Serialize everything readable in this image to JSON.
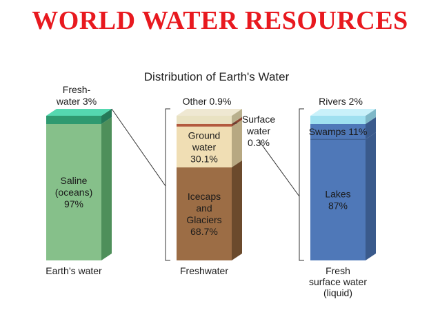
{
  "slide": {
    "title": "WORLD WATER RESOURCES"
  },
  "chart_data": {
    "type": "bar",
    "title": "Distribution of Earth's Water",
    "stacks": [
      {
        "name": "Earth’s water",
        "caption_lines": [
          "Earth’s water"
        ],
        "segments": [
          {
            "label_lines": [
              "Saline",
              "(oceans)",
              "97%"
            ],
            "value": 97,
            "color": "#86c08a",
            "side_color": "#4e8f5a",
            "label_position": "inside"
          },
          {
            "label_lines": [
              "Fresh-",
              "water 3%"
            ],
            "value": 3,
            "color": "#2f9a70",
            "side_color": "#257a58",
            "top_color": "#55d8b0",
            "label_position": "above"
          }
        ]
      },
      {
        "name": "Freshwater",
        "caption_lines": [
          "Freshwater"
        ],
        "segments": [
          {
            "label_lines": [
              "Icecaps",
              "and",
              "Glaciers",
              "68.7%"
            ],
            "value": 68.7,
            "color": "#9c6d45",
            "side_color": "#6b4a2c",
            "label_position": "inside"
          },
          {
            "label_lines": [
              "Ground",
              "water",
              "30.1%"
            ],
            "value": 30.1,
            "color": "#f0deb4",
            "side_color": "#b7a882",
            "label_position": "inside"
          },
          {
            "label_lines": [
              "Surface",
              "water",
              "0.3%"
            ],
            "value": 0.3,
            "color": "#b35a3e",
            "side_color": "#8a4530",
            "label_position": "right"
          },
          {
            "label_lines": [
              "Other 0.9%"
            ],
            "value": 0.9,
            "color": "#e9e2c2",
            "side_color": "#b9b08e",
            "top_color": "#efe8d2",
            "label_position": "above"
          }
        ]
      },
      {
        "name": "Fresh surface water (liquid)",
        "caption_lines": [
          "Fresh",
          "surface water",
          "(liquid)"
        ],
        "segments": [
          {
            "label_lines": [
              "Lakes",
              "87%"
            ],
            "value": 87,
            "color": "#4f78b8",
            "side_color": "#3a5a8c",
            "label_position": "inside"
          },
          {
            "label_lines": [
              "Swamps 11%"
            ],
            "value": 11,
            "color": "#4f78b8",
            "side_color": "#3a5a8c",
            "label_position": "inside"
          },
          {
            "label_lines": [
              "Rivers 2%"
            ],
            "value": 2,
            "color": "#9fe0f0",
            "side_color": "#7fb8c8",
            "top_color": "#c9f1fa",
            "label_position": "above"
          }
        ]
      }
    ]
  }
}
